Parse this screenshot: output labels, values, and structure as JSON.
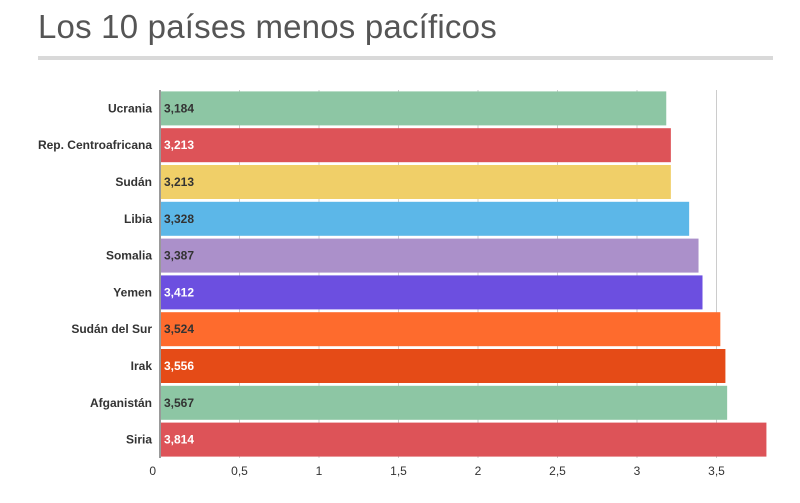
{
  "title": "Los 10 países menos pacíficos",
  "chart_data": {
    "type": "bar",
    "orientation": "horizontal",
    "title": "Los 10 países menos pacíficos",
    "xlabel": "",
    "ylabel": "",
    "xlim": [
      0,
      3.9
    ],
    "grid": true,
    "categories": [
      "Ucrania",
      "Rep. Centroafricana",
      "Sudán",
      "Libia",
      "Somalia",
      "Yemen",
      "Sudán del Sur",
      "Irak",
      "Afganistán",
      "Siria"
    ],
    "values": [
      3.184,
      3.213,
      3.213,
      3.328,
      3.387,
      3.412,
      3.524,
      3.556,
      3.567,
      3.814
    ],
    "value_labels": [
      "3,184",
      "3,213",
      "3,213",
      "3,328",
      "3,387",
      "3,412",
      "3,524",
      "3,556",
      "3,567",
      "3,814"
    ],
    "colors": [
      "#8dc6a4",
      "#dd5358",
      "#f0cf68",
      "#5cb7e8",
      "#ab90ca",
      "#6c4fe0",
      "#fe6b2d",
      "#e54b17",
      "#8dc6a4",
      "#dd5358"
    ],
    "label_colors": [
      "#333333",
      "#ffffff",
      "#333333",
      "#333333",
      "#333333",
      "#ffffff",
      "#333333",
      "#ffffff",
      "#333333",
      "#ffffff"
    ],
    "ticks": [
      0,
      0.5,
      1,
      1.5,
      2,
      2.5,
      3,
      3.5
    ],
    "tick_labels": [
      "0",
      "0,5",
      "1",
      "1,5",
      "2",
      "2,5",
      "3",
      "3,5"
    ]
  }
}
